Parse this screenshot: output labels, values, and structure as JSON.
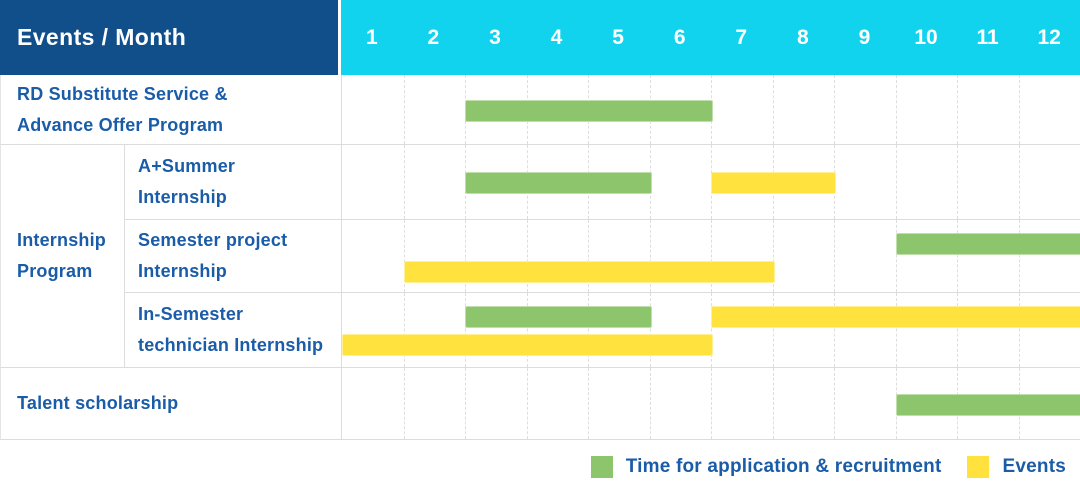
{
  "table": {
    "corner_label": "Events / Month",
    "months": [
      "1",
      "2",
      "3",
      "4",
      "5",
      "6",
      "7",
      "8",
      "9",
      "10",
      "11",
      "12"
    ],
    "row_labels": {
      "rd_program": "RD Substitute Service &\nAdvance Offer Program",
      "internship_group": "Internship\nProgram",
      "a_plus_summer": "A+Summer\nInternship",
      "semester_project": "Semester project\nInternship",
      "in_semester": "In-Semester\ntechnician Internship",
      "talent": "Talent scholarship"
    }
  },
  "colors": {
    "header_dark_blue": "#114F8B",
    "header_cyan": "#12D3EE",
    "label_text_blue": "#1A5CA8",
    "grid_line": "#DCDCDC",
    "bar_green": "#8CC56B",
    "bar_yellow": "#FFE23E"
  },
  "chart_data": {
    "type": "bar",
    "subtype": "gantt-timeline",
    "x_axis": {
      "unit": "Month",
      "ticks": [
        1,
        2,
        3,
        4,
        5,
        6,
        7,
        8,
        9,
        10,
        11,
        12
      ],
      "range": [
        1,
        12
      ]
    },
    "grid": "dashed-vertical-month-lines",
    "legend_position": "bottom-right",
    "series": [
      {
        "id": "application",
        "name": "Time for application & recruitment",
        "color": "#8CC56B"
      },
      {
        "id": "events",
        "name": "Events",
        "color": "#FFE23E"
      }
    ],
    "rows": [
      {
        "group": null,
        "label": "RD Substitute Service & Advance Offer Program",
        "bars": [
          {
            "series": "application",
            "start_month": 3,
            "end_month": 6,
            "lane": "center"
          }
        ]
      },
      {
        "group": "Internship Program",
        "label": "A+Summer Internship",
        "bars": [
          {
            "series": "application",
            "start_month": 3,
            "end_month": 5,
            "lane": "center"
          },
          {
            "series": "events",
            "start_month": 7,
            "end_month": 8,
            "lane": "center"
          }
        ]
      },
      {
        "group": "Internship Program",
        "label": "Semester project Internship",
        "bars": [
          {
            "series": "application",
            "start_month": 10,
            "end_month": 12,
            "lane": "upper"
          },
          {
            "series": "events",
            "start_month": 2,
            "end_month": 7,
            "lane": "lower"
          }
        ]
      },
      {
        "group": "Internship Program",
        "label": "In-Semester technician Internship",
        "bars": [
          {
            "series": "application",
            "start_month": 3,
            "end_month": 5,
            "lane": "upper"
          },
          {
            "series": "events",
            "start_month": 7,
            "end_month": 12,
            "lane": "upper"
          },
          {
            "series": "events",
            "start_month": 1,
            "end_month": 6,
            "lane": "lower"
          }
        ]
      },
      {
        "group": null,
        "label": "Talent scholarship",
        "bars": [
          {
            "series": "application",
            "start_month": 10,
            "end_month": 12,
            "lane": "center"
          }
        ]
      }
    ]
  },
  "legend": {
    "items": [
      {
        "label": "Time for application & recruitment",
        "color": "#8CC56B"
      },
      {
        "label": "Events",
        "color": "#FFE23E"
      }
    ]
  }
}
